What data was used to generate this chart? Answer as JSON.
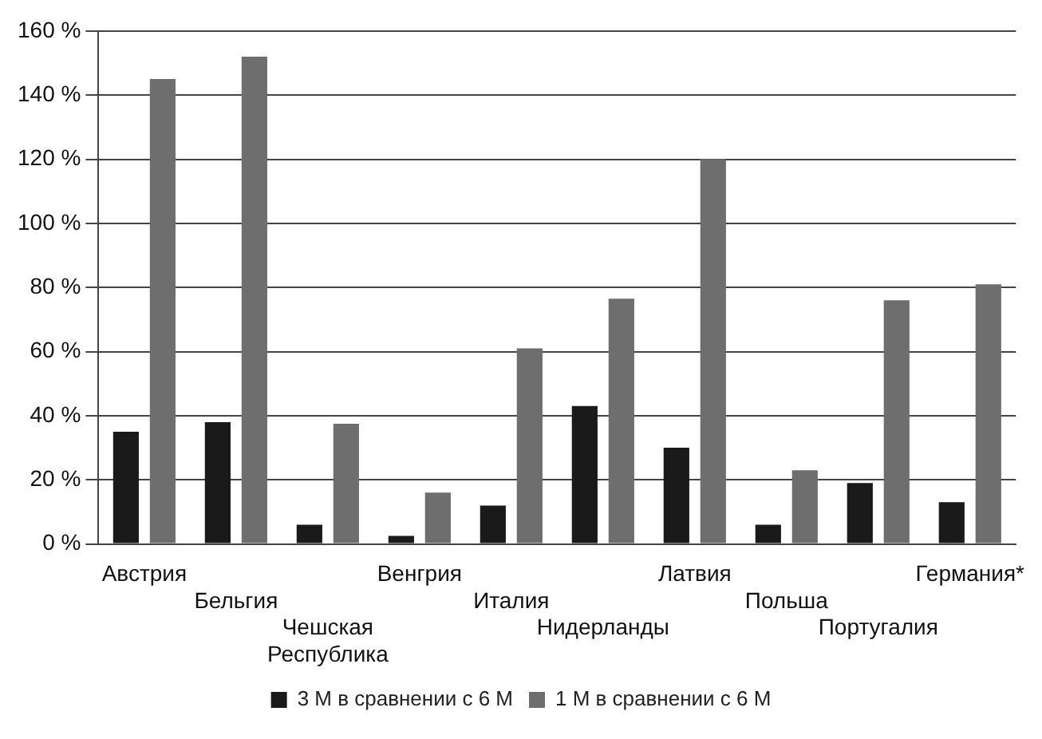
{
  "chart_data": {
    "type": "bar",
    "categories": [
      "Австрия",
      "Бельгия",
      "Чешская Республика",
      "Венгрия",
      "Италия",
      "Нидерланды",
      "Латвия",
      "Польша",
      "Португалия",
      "Германия*"
    ],
    "series": [
      {
        "name": "3 M в сравнении с 6 M",
        "color": "#1a1a1a",
        "values": [
          35,
          38,
          6,
          2.5,
          12,
          43,
          30,
          6,
          19,
          13
        ]
      },
      {
        "name": "1 M в сравнении с 6 M",
        "color": "#6e6e6e",
        "values": [
          145,
          152,
          37.5,
          16,
          61,
          76.5,
          120,
          23,
          76,
          81
        ]
      }
    ],
    "ylim": [
      0,
      160
    ],
    "yticks": [
      {
        "value": 0,
        "label": "0 %"
      },
      {
        "value": 20,
        "label": "20 %"
      },
      {
        "value": 40,
        "label": "40 %"
      },
      {
        "value": 60,
        "label": "60 %"
      },
      {
        "value": 80,
        "label": "80 %"
      },
      {
        "value": 100,
        "label": "100 %"
      },
      {
        "value": 120,
        "label": "120 %"
      },
      {
        "value": 140,
        "label": "140 %"
      },
      {
        "value": 160,
        "label": "160 %"
      }
    ],
    "grid": "y",
    "legend": "bottom"
  }
}
